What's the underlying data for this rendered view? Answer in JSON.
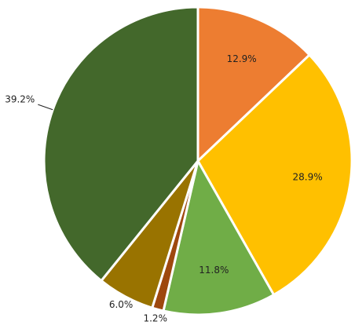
{
  "chart_data": {
    "type": "pie",
    "values": [
      12.9,
      28.9,
      11.8,
      1.2,
      6.0,
      39.2
    ],
    "value_labels": [
      "12.9%",
      "28.9%",
      "11.8%",
      "1.2%",
      "6.0%",
      "39.2%"
    ],
    "colors": [
      "#ed7d31",
      "#ffc000",
      "#70ad47",
      "#9e480e",
      "#997300",
      "#43682b"
    ]
  }
}
